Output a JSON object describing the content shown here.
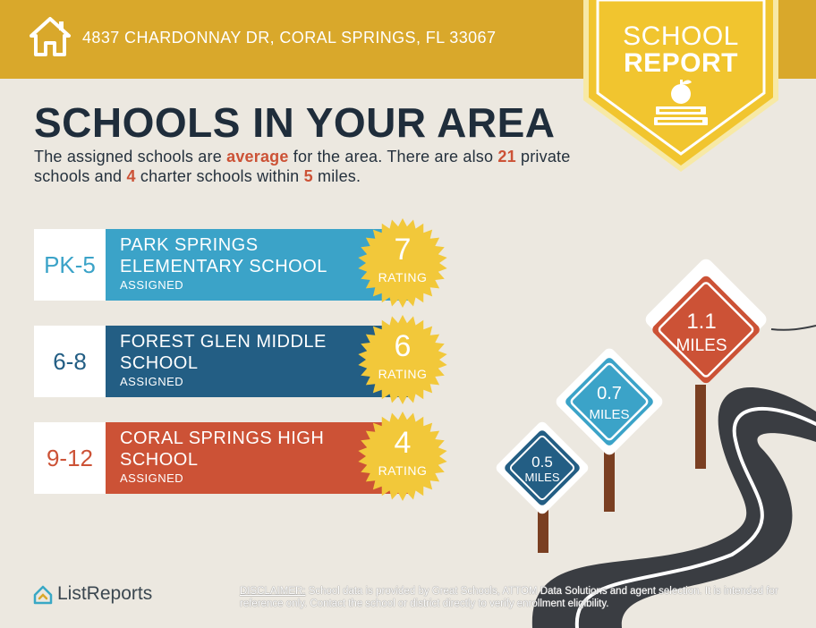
{
  "header": {
    "address": "4837 CHARDONNAY DR, CORAL SPRINGS, FL 33067",
    "badge_line1": "SCHOOL",
    "badge_line2": "REPORT"
  },
  "headline": "SCHOOLS IN YOUR AREA",
  "intro": {
    "part1": "The assigned schools are ",
    "quality": "average",
    "part2": " for the area. There are also ",
    "private_count": "21",
    "part3": " private schools and ",
    "charter_count": "4",
    "part4": " charter schools within ",
    "radius": "5",
    "part5": " miles."
  },
  "schools": [
    {
      "grades": "PK-5",
      "name": "PARK SPRINGS ELEMENTARY SCHOOL",
      "status": "ASSIGNED",
      "rating": "7",
      "rating_label": "RATING",
      "color": "#3ba3c8",
      "grade_color": "#3ba3c8"
    },
    {
      "grades": "6-8",
      "name": "FOREST GLEN MIDDLE SCHOOL",
      "status": "ASSIGNED",
      "rating": "6",
      "rating_label": "RATING",
      "color": "#235e84",
      "grade_color": "#235e84"
    },
    {
      "grades": "9-12",
      "name": "CORAL SPRINGS HIGH SCHOOL",
      "status": "ASSIGNED",
      "rating": "4",
      "rating_label": "RATING",
      "color": "#cc5236",
      "grade_color": "#cc5236"
    }
  ],
  "distance_signs": [
    {
      "value": "0.5",
      "unit": "MILES",
      "color": "#235e84"
    },
    {
      "value": "0.7",
      "unit": "MILES",
      "color": "#3ba3c8"
    },
    {
      "value": "1.1",
      "unit": "MILES",
      "color": "#cc5236"
    }
  ],
  "footer": {
    "logo_text": "ListReports",
    "disclaimer_label": "DISCLAIMER:",
    "disclaimer_text": " School data is provided by Great Schools, ATTOM Data Solutions and agent selection. It is intended for reference only. Contact the school or district directly to verify enrollment eligibility."
  },
  "icons": {
    "header": "home-icon",
    "badge": "apple-on-books-icon",
    "logo": "listreports-logo-icon",
    "rating": "sunburst-seal-icon"
  },
  "colors": {
    "gold": "#d9a82b",
    "badge_yellow": "#f1c52f",
    "seal_yellow": "#f2c83a",
    "accent_red": "#cc5236",
    "light_blue": "#3ba3c8",
    "dark_blue": "#235e84",
    "background": "#ece8e0",
    "road": "#3a3d42",
    "post": "#7a3f22"
  }
}
